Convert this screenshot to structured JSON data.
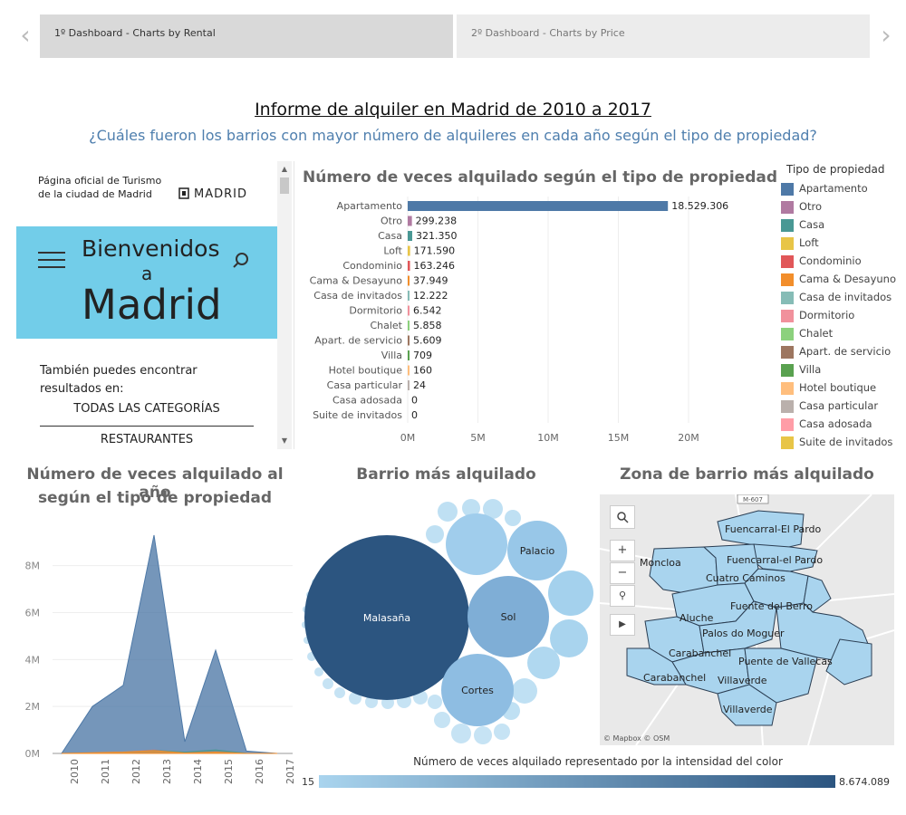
{
  "tabs": [
    {
      "label": "1º Dashboard  -  Charts by Rental",
      "active": true
    },
    {
      "label": "2º Dashboard  -  Charts by Price",
      "active": false
    }
  ],
  "nav": {
    "prev_icon": "‹",
    "next_icon": "›"
  },
  "header": {
    "title": "Informe de alquiler en Madrid de 2010 a 2017",
    "subtitle": "¿Cuáles fueron los barrios con mayor número de alquileres en cada año según el tipo de propiedad?"
  },
  "web": {
    "top_text": "Página oficial de Turismo de la ciudad de Madrid",
    "logo_text": "MADRID",
    "hero_line1": "Bienvenidos",
    "hero_line2": "a",
    "hero_line3": "Madrid",
    "also_text": "También puedes encontrar resultados en:",
    "categories": [
      "TODAS LAS CATEGORÍAS",
      "RESTAURANTES"
    ],
    "hero_color": "#72cde9"
  },
  "bar_chart": {
    "title": "Número de veces alquilado según el tipo de propiedad"
  },
  "area_chart": {
    "title_line1": "Número de veces alquilado al año",
    "title_line2": "según el tipo de propiedad"
  },
  "bubble_chart": {
    "title": "Barrio más alquilado",
    "bubbles": [
      {
        "label": "Malasaña"
      },
      {
        "label": "Sol"
      },
      {
        "label": "Palacio"
      },
      {
        "label": "Cortes"
      }
    ]
  },
  "map": {
    "title": "Zona de barrio más alquilado",
    "road_label": "M-607",
    "labels": [
      "Fuencarral-El Pardo",
      "Fuencarral-el Pardo",
      "Moncloa",
      "Cuatro Caminos",
      "Fuente del Berro",
      "Aluche",
      "Palos do Moguer",
      "Carabanchel",
      "Puente de Vallecas",
      "Carabanchel",
      "Villaverde",
      "Villaverde"
    ],
    "attribution": "© Mapbox © OSM"
  },
  "legend": {
    "title": "Tipo de propiedad",
    "items": [
      {
        "label": "Apartamento",
        "color": "#4e79a7"
      },
      {
        "label": "Otro",
        "color": "#b07aa1"
      },
      {
        "label": "Casa",
        "color": "#499894"
      },
      {
        "label": "Loft",
        "color": "#e8c547"
      },
      {
        "label": "Condominio",
        "color": "#e15759"
      },
      {
        "label": "Cama & Desayuno",
        "color": "#f28e2b"
      },
      {
        "label": "Casa de invitados",
        "color": "#86bcb6"
      },
      {
        "label": "Dormitorio",
        "color": "#f1919c"
      },
      {
        "label": "Chalet",
        "color": "#8cd17d"
      },
      {
        "label": "Apart. de servicio",
        "color": "#9d7660"
      },
      {
        "label": "Villa",
        "color": "#59a14f"
      },
      {
        "label": "Hotel boutique",
        "color": "#ffbe7d"
      },
      {
        "label": "Casa particular",
        "color": "#bab0ac"
      },
      {
        "label": "Casa adosada",
        "color": "#ff9da7"
      },
      {
        "label": "Suite de invitados",
        "color": "#e8c547"
      }
    ]
  },
  "color_legend": {
    "title": "Número de veces alquilado representado por la intensidad del color",
    "min": "15",
    "max": "8.674.089"
  },
  "chart_data": [
    {
      "type": "bar",
      "title": "Número de veces alquilado según el tipo de propiedad",
      "orientation": "horizontal",
      "categories": [
        "Apartamento",
        "Otro",
        "Casa",
        "Loft",
        "Condominio",
        "Cama & Desayuno",
        "Casa de invitados",
        "Dormitorio",
        "Chalet",
        "Apart. de servicio",
        "Villa",
        "Hotel boutique",
        "Casa particular",
        "Casa adosada",
        "Suite de invitados"
      ],
      "values": [
        18529306,
        299238,
        321350,
        171590,
        163246,
        37949,
        12222,
        6542,
        5858,
        5609,
        709,
        160,
        24,
        0,
        0
      ],
      "value_labels": [
        "18.529.306",
        "299.238",
        "321.350",
        "171.590",
        "163.246",
        "37.949",
        "12.222",
        "6.542",
        "5.858",
        "5.609",
        "709",
        "160",
        "24",
        "0",
        "0"
      ],
      "colors": [
        "#4e79a7",
        "#b07aa1",
        "#499894",
        "#e8c547",
        "#e15759",
        "#f28e2b",
        "#86bcb6",
        "#f1919c",
        "#8cd17d",
        "#9d7660",
        "#59a14f",
        "#ffbe7d",
        "#bab0ac",
        "#ff9da7",
        "#e8c547"
      ],
      "xticks": [
        "0M",
        "5M",
        "10M",
        "15M",
        "20M"
      ],
      "xlim": [
        0,
        22000000
      ],
      "grid": true
    },
    {
      "type": "area",
      "title": "Número de veces alquilado al año según el tipo de propiedad",
      "x": [
        "2010",
        "2011",
        "2012",
        "2013",
        "2014",
        "2015",
        "2016",
        "2017"
      ],
      "series": [
        {
          "name": "Apartamento",
          "color": "#4e79a7",
          "values": [
            0,
            2000000,
            2900000,
            9300000,
            500000,
            4400000,
            100000,
            0
          ]
        },
        {
          "name": "Otro",
          "color": "#b07aa1",
          "values": [
            0,
            20000,
            50000,
            150000,
            20000,
            100000,
            2000,
            0
          ]
        },
        {
          "name": "Casa",
          "color": "#499894",
          "values": [
            0,
            20000,
            40000,
            130000,
            60000,
            150000,
            5000,
            0
          ]
        },
        {
          "name": "Cama & Desayuno",
          "color": "#f28e2b",
          "values": [
            0,
            30000,
            60000,
            120000,
            20000,
            60000,
            2000,
            0
          ]
        }
      ],
      "yticks": [
        "0M",
        "2M",
        "4M",
        "6M",
        "8M"
      ],
      "ylim": [
        0,
        9800000
      ],
      "grid": true
    }
  ]
}
